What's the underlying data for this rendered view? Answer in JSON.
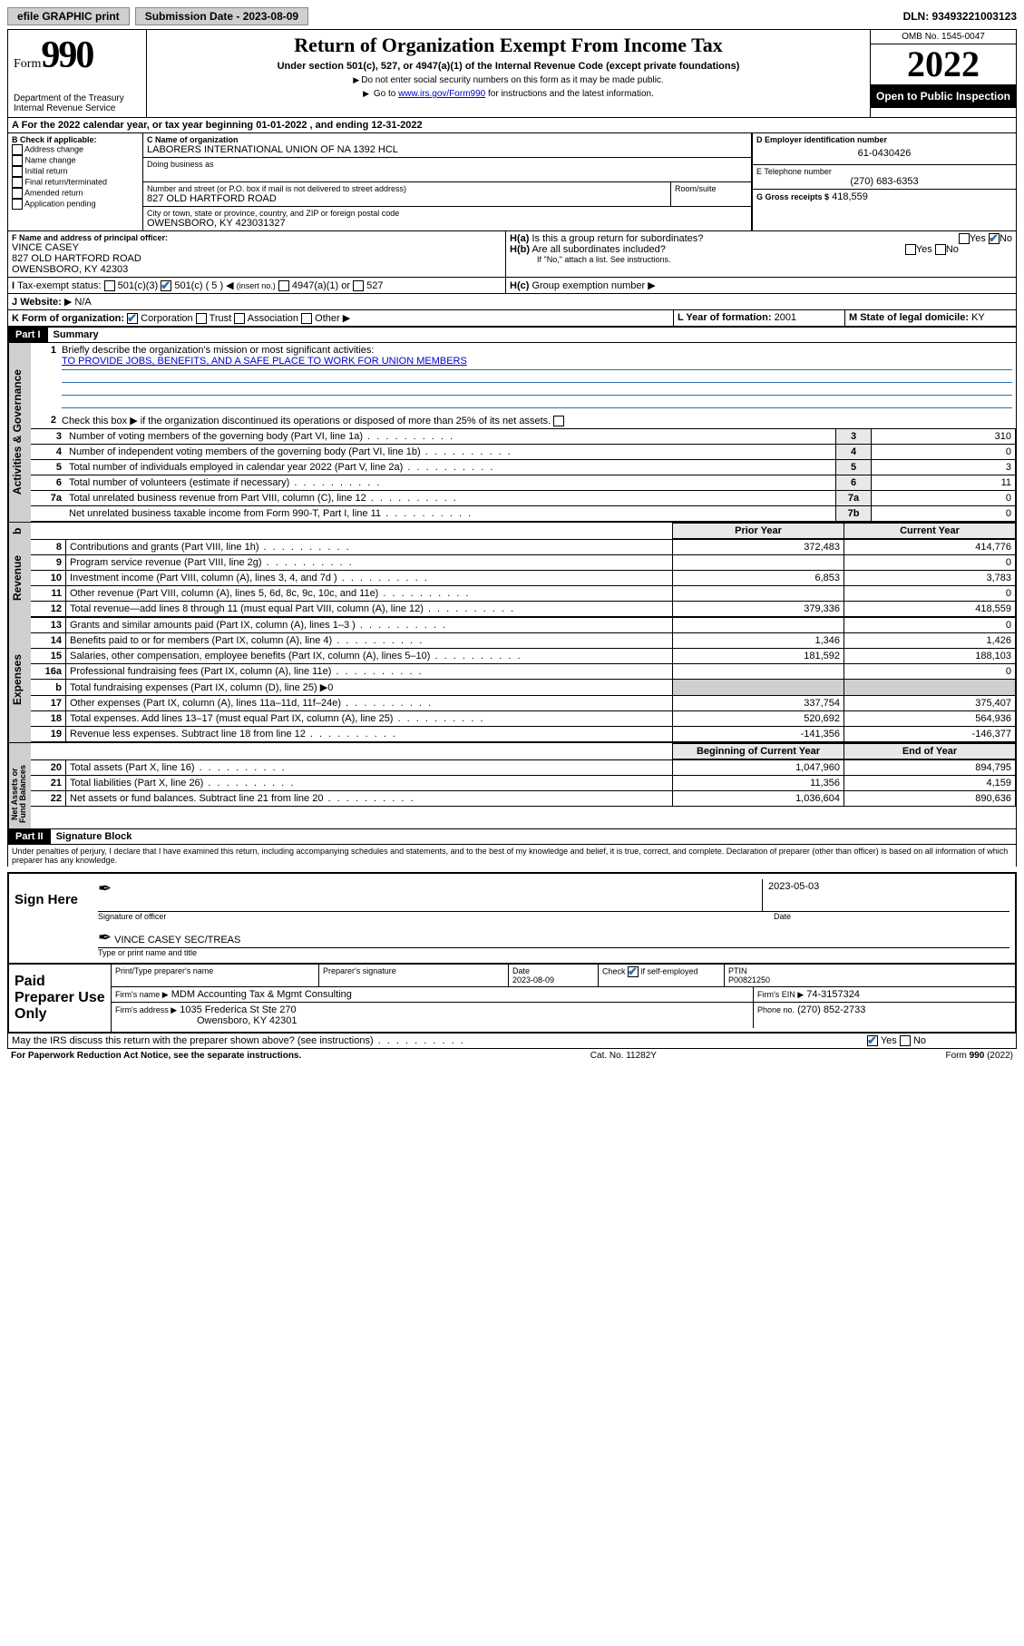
{
  "topbar": {
    "efile": "efile GRAPHIC print",
    "submission_label": "Submission Date - 2023-08-09",
    "dln": "DLN: 93493221003123"
  },
  "header": {
    "form_word": "Form",
    "form_num": "990",
    "title": "Return of Organization Exempt From Income Tax",
    "subtitle": "Under section 501(c), 527, or 4947(a)(1) of the Internal Revenue Code (except private foundations)",
    "note1": "Do not enter social security numbers on this form as it may be made public.",
    "note2_pre": "Go to ",
    "note2_link": "www.irs.gov/Form990",
    "note2_post": " for instructions and the latest information.",
    "dept": "Department of the Treasury",
    "irs": "Internal Revenue Service",
    "omb": "OMB No. 1545-0047",
    "year": "2022",
    "open": "Open to Public Inspection"
  },
  "sectionA": {
    "a_line": "For the 2022 calendar year, or tax year beginning 01-01-2022    , and ending 12-31-2022",
    "b_label": "B Check if applicable:",
    "b_opts": [
      "Address change",
      "Name change",
      "Initial return",
      "Final return/terminated",
      "Amended return",
      "Application pending"
    ],
    "c_label": "C Name of organization",
    "c_name": "LABORERS INTERNATIONAL UNION OF NA 1392 HCL",
    "dba": "Doing business as",
    "addr_label": "Number and street (or P.O. box if mail is not delivered to street address)",
    "room": "Room/suite",
    "addr": "827 OLD HARTFORD ROAD",
    "city_label": "City or town, state or province, country, and ZIP or foreign postal code",
    "city": "OWENSBORO, KY  423031327",
    "d_label": "D Employer identification number",
    "d_val": "61-0430426",
    "e_label": "E Telephone number",
    "e_val": "(270) 683-6353",
    "g_label": "G Gross receipts $",
    "g_val": "418,559",
    "f_label": "F  Name and address of principal officer:",
    "f_name": "VINCE CASEY",
    "f_addr1": "827 OLD HARTFORD ROAD",
    "f_addr2": "OWENSBORO, KY  42303",
    "ha": "Is this a group return for subordinates?",
    "ha_yes": "Yes",
    "ha_no": "No",
    "hb": "Are all subordinates included?",
    "hb_note": "If \"No,\" attach a list. See instructions.",
    "hc": "Group exemption number",
    "i_label": "Tax-exempt status:",
    "i_501c3": "501(c)(3)",
    "i_501c": "501(c) ( 5 )",
    "i_insert": "(insert no.)",
    "i_4947": "4947(a)(1) or",
    "i_527": "527",
    "j_label": "Website:",
    "j_val": "N/A",
    "k_label": "K Form of organization:",
    "k_opts": [
      "Corporation",
      "Trust",
      "Association",
      "Other"
    ],
    "l_label": "L Year of formation:",
    "l_val": "2001",
    "m_label": "M State of legal domicile:",
    "m_val": "KY"
  },
  "part1": {
    "hdr": "Part I",
    "title": "Summary",
    "line1": "Briefly describe the organization's mission or most significant activities:",
    "line1_val": "TO PROVIDE JOBS, BENEFITS, AND A SAFE PLACE TO WORK FOR UNION MEMBERS",
    "line2": "Check this box ▶       if the organization discontinued its operations or disposed of more than 25% of its net assets.",
    "rows_simple": [
      {
        "n": "3",
        "t": "Number of voting members of the governing body (Part VI, line 1a)",
        "box": "3",
        "v": "310"
      },
      {
        "n": "4",
        "t": "Number of independent voting members of the governing body (Part VI, line 1b)",
        "box": "4",
        "v": "0"
      },
      {
        "n": "5",
        "t": "Total number of individuals employed in calendar year 2022 (Part V, line 2a)",
        "box": "5",
        "v": "3"
      },
      {
        "n": "6",
        "t": "Total number of volunteers (estimate if necessary)",
        "box": "6",
        "v": "11"
      },
      {
        "n": "7a",
        "t": "Total unrelated business revenue from Part VIII, column (C), line 12",
        "box": "7a",
        "v": "0"
      },
      {
        "n": "",
        "t": "Net unrelated business taxable income from Form 990-T, Part I, line 11",
        "box": "7b",
        "v": "0"
      }
    ],
    "col_prior": "Prior Year",
    "col_current": "Current Year",
    "revenue": [
      {
        "n": "8",
        "t": "Contributions and grants (Part VIII, line 1h)",
        "p": "372,483",
        "c": "414,776"
      },
      {
        "n": "9",
        "t": "Program service revenue (Part VIII, line 2g)",
        "p": "",
        "c": "0"
      },
      {
        "n": "10",
        "t": "Investment income (Part VIII, column (A), lines 3, 4, and 7d )",
        "p": "6,853",
        "c": "3,783"
      },
      {
        "n": "11",
        "t": "Other revenue (Part VIII, column (A), lines 5, 6d, 8c, 9c, 10c, and 11e)",
        "p": "",
        "c": "0"
      },
      {
        "n": "12",
        "t": "Total revenue—add lines 8 through 11 (must equal Part VIII, column (A), line 12)",
        "p": "379,336",
        "c": "418,559"
      }
    ],
    "expenses": [
      {
        "n": "13",
        "t": "Grants and similar amounts paid (Part IX, column (A), lines 1–3 )",
        "p": "",
        "c": "0"
      },
      {
        "n": "14",
        "t": "Benefits paid to or for members (Part IX, column (A), line 4)",
        "p": "1,346",
        "c": "1,426"
      },
      {
        "n": "15",
        "t": "Salaries, other compensation, employee benefits (Part IX, column (A), lines 5–10)",
        "p": "181,592",
        "c": "188,103"
      },
      {
        "n": "16a",
        "t": "Professional fundraising fees (Part IX, column (A), line 11e)",
        "p": "",
        "c": "0"
      },
      {
        "n": "b",
        "t": "Total fundraising expenses (Part IX, column (D), line 25) ▶0",
        "p": null,
        "c": null
      },
      {
        "n": "17",
        "t": "Other expenses (Part IX, column (A), lines 11a–11d, 11f–24e)",
        "p": "337,754",
        "c": "375,407"
      },
      {
        "n": "18",
        "t": "Total expenses. Add lines 13–17 (must equal Part IX, column (A), line 25)",
        "p": "520,692",
        "c": "564,936"
      },
      {
        "n": "19",
        "t": "Revenue less expenses. Subtract line 18 from line 12",
        "p": "-141,356",
        "c": "-146,377"
      }
    ],
    "col_begin": "Beginning of Current Year",
    "col_end": "End of Year",
    "netassets": [
      {
        "n": "20",
        "t": "Total assets (Part X, line 16)",
        "p": "1,047,960",
        "c": "894,795"
      },
      {
        "n": "21",
        "t": "Total liabilities (Part X, line 26)",
        "p": "11,356",
        "c": "4,159"
      },
      {
        "n": "22",
        "t": "Net assets or fund balances. Subtract line 21 from line 20",
        "p": "1,036,604",
        "c": "890,636"
      }
    ]
  },
  "part2": {
    "hdr": "Part II",
    "title": "Signature Block",
    "decl": "Under penalties of perjury, I declare that I have examined this return, including accompanying schedules and statements, and to the best of my knowledge and belief, it is true, correct, and complete. Declaration of preparer (other than officer) is based on all information of which preparer has any knowledge.",
    "sign_here": "Sign Here",
    "sig_officer": "Signature of officer",
    "sig_date": "Date",
    "sig_date_val": "2023-05-03",
    "sig_name": "VINCE CASEY SEC/TREAS",
    "sig_name_label": "Type or print name and title",
    "paid": "Paid Preparer Use Only",
    "prep_name_label": "Print/Type preparer's name",
    "prep_sig_label": "Preparer's signature",
    "prep_date_label": "Date",
    "prep_date": "2023-08-09",
    "prep_check": "Check        if self-employed",
    "ptin_label": "PTIN",
    "ptin": "P00821250",
    "firm_name_label": "Firm's name    ▶",
    "firm_name": "MDM Accounting Tax & Mgmt Consulting",
    "firm_ein_label": "Firm's EIN ▶",
    "firm_ein": "74-3157324",
    "firm_addr_label": "Firm's address ▶",
    "firm_addr1": "1035 Frederica St Ste 270",
    "firm_addr2": "Owensboro, KY  42301",
    "firm_phone_label": "Phone no.",
    "firm_phone": "(270) 852-2733",
    "may_irs": "May the IRS discuss this return with the preparer shown above? (see instructions)",
    "yes": "Yes",
    "no": "No"
  },
  "footer": {
    "pra": "For Paperwork Reduction Act Notice, see the separate instructions.",
    "cat": "Cat. No. 11282Y",
    "form": "Form 990 (2022)"
  }
}
